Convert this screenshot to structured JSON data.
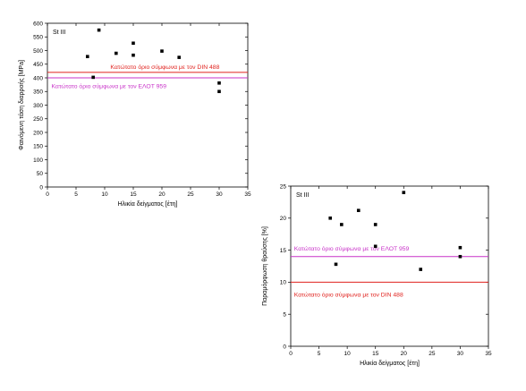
{
  "chart_data": [
    {
      "type": "scatter",
      "tag": "St III",
      "xlabel": "Ηλικία δείγματος [έτη]",
      "ylabel": "Φαινόμενη τάση διαρροής [MPa]",
      "xlim": [
        0,
        35
      ],
      "ylim": [
        0,
        600
      ],
      "xticks": [
        0,
        5,
        10,
        15,
        20,
        25,
        30,
        35
      ],
      "yticks": [
        0,
        50,
        100,
        150,
        200,
        250,
        300,
        350,
        400,
        450,
        500,
        550,
        600
      ],
      "grid": false,
      "points": [
        {
          "x": 7,
          "y": 478
        },
        {
          "x": 8,
          "y": 402
        },
        {
          "x": 9,
          "y": 575
        },
        {
          "x": 12,
          "y": 490
        },
        {
          "x": 15,
          "y": 527
        },
        {
          "x": 15,
          "y": 483
        },
        {
          "x": 20,
          "y": 498
        },
        {
          "x": 23,
          "y": 475
        },
        {
          "x": 30,
          "y": 381
        },
        {
          "x": 30,
          "y": 350
        }
      ],
      "hlines": [
        {
          "y": 420,
          "color": "#e0201c",
          "label": "Κατώτατο όριο σύμφωνα με τον DIN 488",
          "label_y": 440,
          "label_x": 11
        },
        {
          "y": 400,
          "color": "#c832c8",
          "label": "Κατώτατο όριο σύμφωνα με τον ΕΛΟΤ 959",
          "label_y": 370,
          "label_x": 0.7
        }
      ]
    },
    {
      "type": "scatter",
      "tag": "St III",
      "xlabel": "Ηλικία δείγματος [έτη]",
      "ylabel": "Παραμόρφωση θραύσης [%]",
      "xlim": [
        0,
        35
      ],
      "ylim": [
        0,
        25
      ],
      "xticks": [
        0,
        5,
        10,
        15,
        20,
        25,
        30,
        35
      ],
      "yticks": [
        0,
        5,
        10,
        15,
        20,
        25
      ],
      "grid": false,
      "points": [
        {
          "x": 7,
          "y": 20
        },
        {
          "x": 8,
          "y": 12.8
        },
        {
          "x": 9,
          "y": 19
        },
        {
          "x": 12,
          "y": 21.2
        },
        {
          "x": 15,
          "y": 19
        },
        {
          "x": 15,
          "y": 15.6
        },
        {
          "x": 20,
          "y": 24
        },
        {
          "x": 23,
          "y": 12
        },
        {
          "x": 30,
          "y": 15.4
        },
        {
          "x": 30,
          "y": 14
        }
      ],
      "hlines": [
        {
          "y": 14,
          "color": "#c832c8",
          "label": "Κατώτατο όριο σύμφωνα με τον ΕΛΟΤ 959",
          "label_y": 15.3,
          "label_x": 0.6
        },
        {
          "y": 10,
          "color": "#e0201c",
          "label": "Κατώτατο όριο σύμφωνα με τον DIN 488",
          "label_y": 8.1,
          "label_x": 0.6
        }
      ]
    }
  ]
}
